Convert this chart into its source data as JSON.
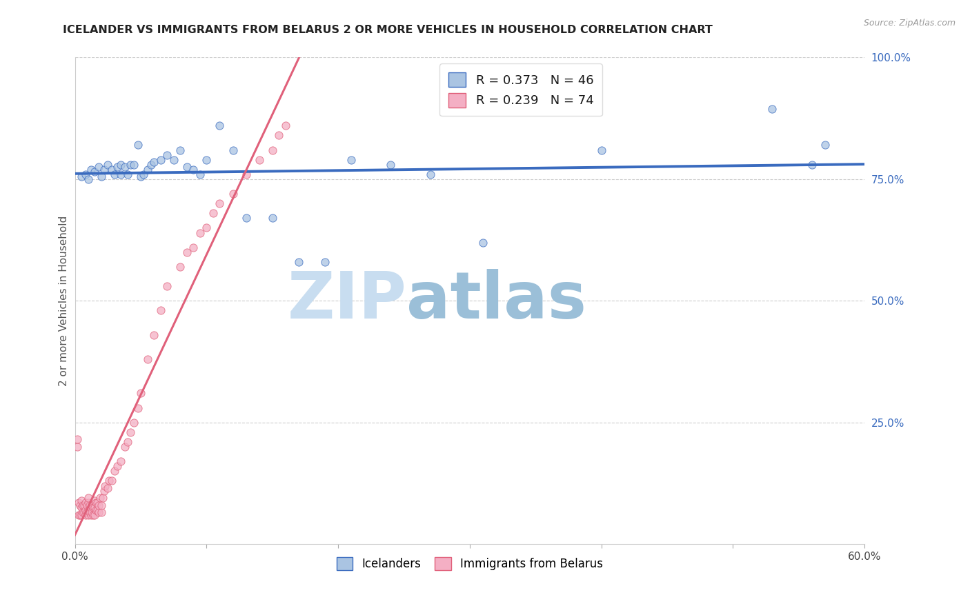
{
  "title": "ICELANDER VS IMMIGRANTS FROM BELARUS 2 OR MORE VEHICLES IN HOUSEHOLD CORRELATION CHART",
  "source": "Source: ZipAtlas.com",
  "ylabel": "2 or more Vehicles in Household",
  "xmin": 0.0,
  "xmax": 0.6,
  "ymin": 0.0,
  "ymax": 1.0,
  "x_ticks": [
    0.0,
    0.1,
    0.2,
    0.3,
    0.4,
    0.5,
    0.6
  ],
  "x_tick_labels": [
    "0.0%",
    "",
    "",
    "",
    "",
    "",
    "60.0%"
  ],
  "y_ticks_right": [
    0.25,
    0.5,
    0.75,
    1.0
  ],
  "y_tick_labels_right": [
    "25.0%",
    "50.0%",
    "75.0%",
    "100.0%"
  ],
  "legend_label1": "R = 0.373   N = 46",
  "legend_label2": "R = 0.239   N = 74",
  "legend_color1": "#aac4e2",
  "legend_color2": "#f4afc4",
  "scatter_color1": "#aac4e2",
  "scatter_color2": "#f4afc4",
  "line_color1": "#3a6bbf",
  "line_color2": "#e0607a",
  "watermark_zip": "ZIP",
  "watermark_atlas": "atlas",
  "watermark_color_zip": "#c8ddf0",
  "watermark_color_atlas": "#9bbfd8",
  "bottom_label1": "Icelanders",
  "bottom_label2": "Immigrants from Belarus",
  "icelanders_x": [
    0.005,
    0.008,
    0.01,
    0.012,
    0.015,
    0.018,
    0.02,
    0.022,
    0.025,
    0.028,
    0.03,
    0.032,
    0.035,
    0.035,
    0.038,
    0.04,
    0.042,
    0.045,
    0.048,
    0.05,
    0.052,
    0.055,
    0.058,
    0.06,
    0.065,
    0.07,
    0.075,
    0.08,
    0.085,
    0.09,
    0.095,
    0.1,
    0.11,
    0.12,
    0.13,
    0.15,
    0.17,
    0.19,
    0.21,
    0.24,
    0.27,
    0.31,
    0.4,
    0.53,
    0.56,
    0.57
  ],
  "icelanders_y": [
    0.755,
    0.76,
    0.75,
    0.77,
    0.765,
    0.775,
    0.755,
    0.77,
    0.78,
    0.77,
    0.76,
    0.775,
    0.76,
    0.78,
    0.775,
    0.76,
    0.78,
    0.78,
    0.82,
    0.755,
    0.76,
    0.77,
    0.78,
    0.785,
    0.79,
    0.8,
    0.79,
    0.81,
    0.775,
    0.77,
    0.76,
    0.79,
    0.86,
    0.81,
    0.67,
    0.67,
    0.58,
    0.58,
    0.79,
    0.78,
    0.76,
    0.62,
    0.81,
    0.895,
    0.78,
    0.82
  ],
  "belarus_x": [
    0.002,
    0.002,
    0.003,
    0.003,
    0.004,
    0.004,
    0.005,
    0.005,
    0.005,
    0.006,
    0.006,
    0.007,
    0.007,
    0.008,
    0.008,
    0.008,
    0.009,
    0.009,
    0.01,
    0.01,
    0.01,
    0.01,
    0.011,
    0.011,
    0.012,
    0.012,
    0.013,
    0.013,
    0.014,
    0.014,
    0.015,
    0.015,
    0.015,
    0.016,
    0.016,
    0.017,
    0.017,
    0.018,
    0.018,
    0.019,
    0.02,
    0.02,
    0.021,
    0.022,
    0.023,
    0.025,
    0.026,
    0.028,
    0.03,
    0.032,
    0.035,
    0.038,
    0.04,
    0.042,
    0.045,
    0.048,
    0.05,
    0.055,
    0.06,
    0.065,
    0.07,
    0.08,
    0.085,
    0.09,
    0.095,
    0.1,
    0.105,
    0.11,
    0.12,
    0.13,
    0.14,
    0.15,
    0.155,
    0.16
  ],
  "belarus_y": [
    0.2,
    0.215,
    0.06,
    0.085,
    0.06,
    0.08,
    0.06,
    0.075,
    0.09,
    0.065,
    0.08,
    0.065,
    0.08,
    0.06,
    0.07,
    0.085,
    0.065,
    0.08,
    0.06,
    0.07,
    0.085,
    0.095,
    0.065,
    0.08,
    0.06,
    0.075,
    0.065,
    0.08,
    0.06,
    0.075,
    0.06,
    0.075,
    0.09,
    0.07,
    0.085,
    0.07,
    0.085,
    0.065,
    0.08,
    0.095,
    0.065,
    0.08,
    0.095,
    0.11,
    0.12,
    0.115,
    0.13,
    0.13,
    0.15,
    0.16,
    0.17,
    0.2,
    0.21,
    0.23,
    0.25,
    0.28,
    0.31,
    0.38,
    0.43,
    0.48,
    0.53,
    0.57,
    0.6,
    0.61,
    0.64,
    0.65,
    0.68,
    0.7,
    0.72,
    0.76,
    0.79,
    0.81,
    0.84,
    0.86
  ]
}
